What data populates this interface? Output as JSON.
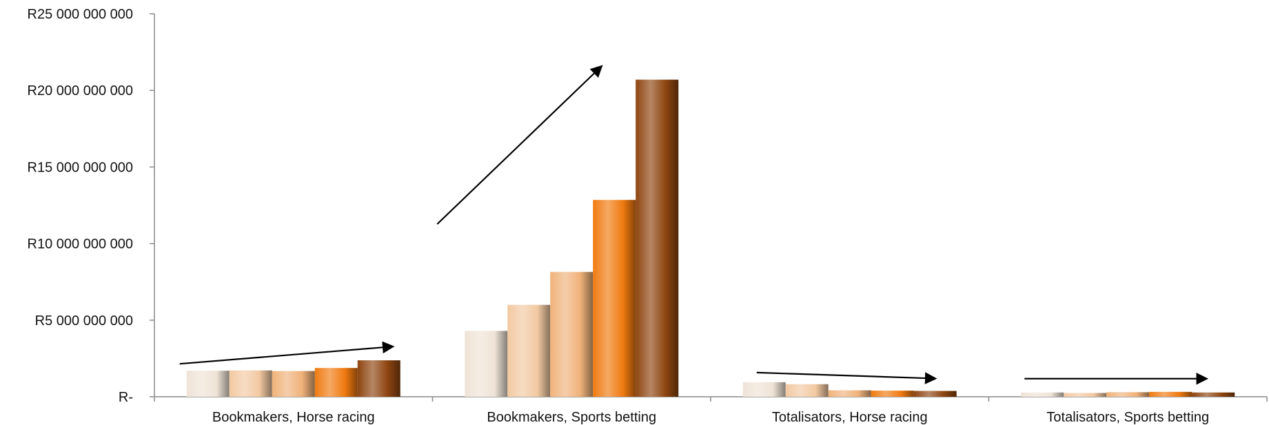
{
  "chart_data": {
    "type": "bar",
    "title": "",
    "xlabel": "",
    "ylabel": "",
    "ylim": [
      0,
      25000000000
    ],
    "y_ticks": [
      0,
      5000000000,
      10000000000,
      15000000000,
      20000000000,
      25000000000
    ],
    "y_tick_labels": [
      "R-",
      "R5 000 000 000",
      "R10 000 000 000",
      "R15 000 000 000",
      "R20 000 000 000",
      "R25 000 000 000"
    ],
    "grid": false,
    "legend": "none",
    "categories": [
      "Bookmakers, Horse racing",
      "Bookmakers, Sports betting",
      "Totalisators, Horse racing",
      "Totalisators, Sports betting"
    ],
    "series": [
      {
        "values": [
          1700000000,
          4300000000,
          950000000,
          280000000
        ],
        "color": "#efe3d6"
      },
      {
        "values": [
          1720000000,
          6000000000,
          820000000,
          250000000
        ],
        "color": "#f2c9a2"
      },
      {
        "values": [
          1680000000,
          8150000000,
          420000000,
          300000000
        ],
        "color": "#f0b27a"
      },
      {
        "values": [
          1880000000,
          12850000000,
          400000000,
          320000000
        ],
        "color": "#f07a10"
      },
      {
        "values": [
          2380000000,
          20700000000,
          380000000,
          280000000
        ],
        "color": "#8e4510"
      }
    ],
    "trend_arrows": [
      "up",
      "up",
      "down",
      "flat"
    ]
  }
}
